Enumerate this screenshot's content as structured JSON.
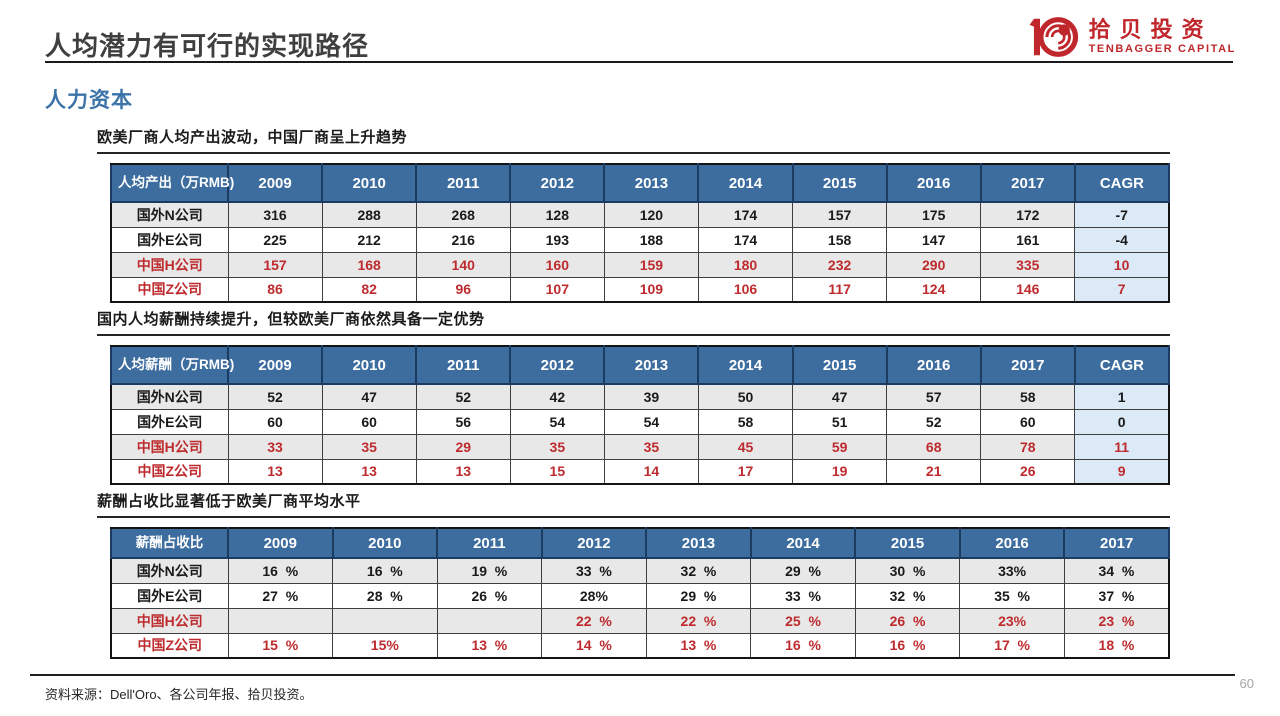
{
  "page": {
    "title": "人均潜力有可行的实现路径",
    "section": "人力资本",
    "source": "资料来源：Dell'Oro、各公司年报、拾贝投资。",
    "page_number": "60"
  },
  "logo": {
    "name_cn": "拾贝投资",
    "name_en": "TENBAGGER CAPITAL",
    "color": "#c0272d"
  },
  "colors": {
    "header_blue": "#3d6d9e",
    "cagr_bg": "#dce9f6",
    "stripe_gray": "#e8e8e8",
    "red_text": "#be2b2e",
    "accent_blue": "#3b73a8"
  },
  "tables": [
    {
      "caption": "欧美厂商人均产出波动，中国厂商呈上升趋势",
      "corner_label": "人均产出（万RMB)",
      "columns": [
        "2009",
        "2010",
        "2011",
        "2012",
        "2013",
        "2014",
        "2015",
        "2016",
        "2017",
        "CAGR"
      ],
      "cagr_column": true,
      "rows": [
        {
          "label": "国外N公司",
          "red": false,
          "values": [
            "316",
            "288",
            "268",
            "128",
            "120",
            "174",
            "157",
            "175",
            "172",
            "-7"
          ]
        },
        {
          "label": "国外E公司",
          "red": false,
          "values": [
            "225",
            "212",
            "216",
            "193",
            "188",
            "174",
            "158",
            "147",
            "161",
            "-4"
          ]
        },
        {
          "label": "中国H公司",
          "red": true,
          "values": [
            "157",
            "168",
            "140",
            "160",
            "159",
            "180",
            "232",
            "290",
            "335",
            "10"
          ]
        },
        {
          "label": "中国Z公司",
          "red": true,
          "values": [
            "86",
            "82",
            "96",
            "107",
            "109",
            "106",
            "117",
            "124",
            "146",
            "7"
          ]
        }
      ]
    },
    {
      "caption": "国内人均薪酬持续提升，但较欧美厂商依然具备一定优势",
      "corner_label": "人均薪酬（万RMB)",
      "columns": [
        "2009",
        "2010",
        "2011",
        "2012",
        "2013",
        "2014",
        "2015",
        "2016",
        "2017",
        "CAGR"
      ],
      "cagr_column": true,
      "rows": [
        {
          "label": "国外N公司",
          "red": false,
          "values": [
            "52",
            "47",
            "52",
            "42",
            "39",
            "50",
            "47",
            "57",
            "58",
            "1"
          ]
        },
        {
          "label": "国外E公司",
          "red": false,
          "values": [
            "60",
            "60",
            "56",
            "54",
            "54",
            "58",
            "51",
            "52",
            "60",
            "0"
          ]
        },
        {
          "label": "中国H公司",
          "red": true,
          "values": [
            "33",
            "35",
            "29",
            "35",
            "35",
            "45",
            "59",
            "68",
            "78",
            "11"
          ]
        },
        {
          "label": "中国Z公司",
          "red": true,
          "values": [
            "13",
            "13",
            "13",
            "15",
            "14",
            "17",
            "19",
            "21",
            "26",
            "9"
          ]
        }
      ]
    },
    {
      "caption": "薪酬占收比显著低于欧美厂商平均水平",
      "corner_label": "薪酬占收比",
      "columns": [
        "2009",
        "2010",
        "2011",
        "2012",
        "2013",
        "2014",
        "2015",
        "2016",
        "2017"
      ],
      "cagr_column": false,
      "rows": [
        {
          "label": "国外N公司",
          "red": false,
          "values": [
            "16  %",
            "16  %",
            "19  %",
            "33  %",
            "32  %",
            "29  %",
            "30  %",
            "33%",
            "34  %"
          ]
        },
        {
          "label": "国外E公司",
          "red": false,
          "values": [
            "27  %",
            "28  %",
            "26  %",
            "28%",
            "29  %",
            "33  %",
            "32  %",
            "35  %",
            "37  %"
          ]
        },
        {
          "label": "中国H公司",
          "red": true,
          "values": [
            "",
            "",
            "",
            "22  %",
            "22  %",
            "25  %",
            "26  %",
            "23%",
            "23  %"
          ]
        },
        {
          "label": "中国Z公司",
          "red": true,
          "values": [
            "15  %",
            "15%",
            "13  %",
            "14  %",
            "13  %",
            "16  %",
            "16  %",
            "17  %",
            "18  %"
          ]
        }
      ]
    }
  ]
}
